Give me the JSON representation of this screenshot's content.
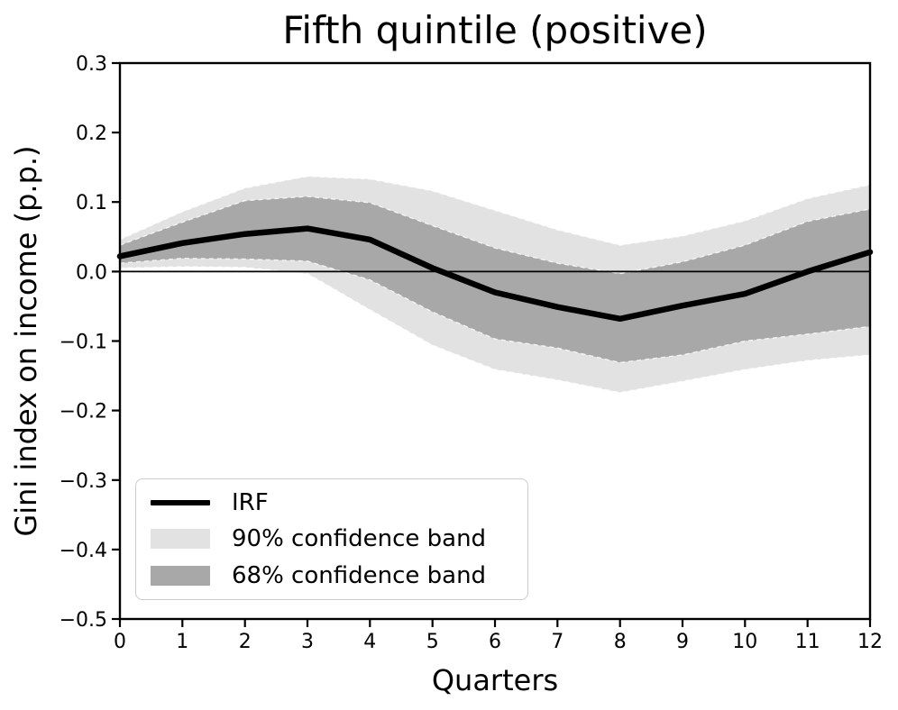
{
  "figure": {
    "background": "#ffffff"
  },
  "chart_data": {
    "type": "line",
    "title": "Fifth quintile (positive)",
    "xlabel": "Quarters",
    "ylabel": "Gini index on income (p.p.)",
    "x": [
      0,
      1,
      2,
      3,
      4,
      5,
      6,
      7,
      8,
      9,
      10,
      11,
      12
    ],
    "xlim": [
      0,
      12
    ],
    "ylim": [
      -0.5,
      0.3
    ],
    "xtick_labels": [
      "0",
      "1",
      "2",
      "3",
      "4",
      "5",
      "6",
      "7",
      "8",
      "9",
      "10",
      "11",
      "12"
    ],
    "ytick_values": [
      0.3,
      0.2,
      0.1,
      0.0,
      -0.1,
      -0.2,
      -0.3,
      -0.4,
      -0.5
    ],
    "ytick_labels": [
      "0.3",
      "0.2",
      "0.1",
      "0.0",
      "−0.1",
      "−0.2",
      "−0.3",
      "−0.4",
      "−0.5"
    ],
    "grid": false,
    "zero_line": true,
    "series": [
      {
        "name": "IRF",
        "color": "#000000",
        "line_width": 6.5,
        "values": [
          0.022,
          0.041,
          0.054,
          0.062,
          0.046,
          0.005,
          -0.03,
          -0.051,
          -0.068,
          -0.049,
          -0.032,
          0.0,
          0.028
        ]
      }
    ],
    "bands": [
      {
        "name": "90% confidence band",
        "color": "#e2e2e2",
        "high": [
          0.046,
          0.086,
          0.12,
          0.137,
          0.133,
          0.116,
          0.088,
          0.06,
          0.038,
          0.051,
          0.073,
          0.105,
          0.125
        ],
        "low": [
          0.005,
          0.007,
          0.006,
          -0.003,
          -0.055,
          -0.106,
          -0.141,
          -0.156,
          -0.174,
          -0.158,
          -0.141,
          -0.128,
          -0.12
        ]
      },
      {
        "name": "68% confidence band",
        "color": "#a8a8a8",
        "high": [
          0.038,
          0.071,
          0.102,
          0.108,
          0.099,
          0.066,
          0.034,
          0.012,
          -0.003,
          0.014,
          0.038,
          0.072,
          0.09
        ],
        "low": [
          0.012,
          0.019,
          0.018,
          0.015,
          -0.012,
          -0.058,
          -0.097,
          -0.11,
          -0.131,
          -0.12,
          -0.1,
          -0.09,
          -0.079
        ]
      }
    ],
    "legend": {
      "position": "lower left",
      "entries": [
        {
          "label": "IRF",
          "swatch": "line",
          "color": "#000000"
        },
        {
          "label": "90% confidence band",
          "swatch": "patch",
          "color": "#e2e2e2"
        },
        {
          "label": "68% confidence band",
          "swatch": "patch",
          "color": "#a8a8a8"
        }
      ]
    }
  }
}
